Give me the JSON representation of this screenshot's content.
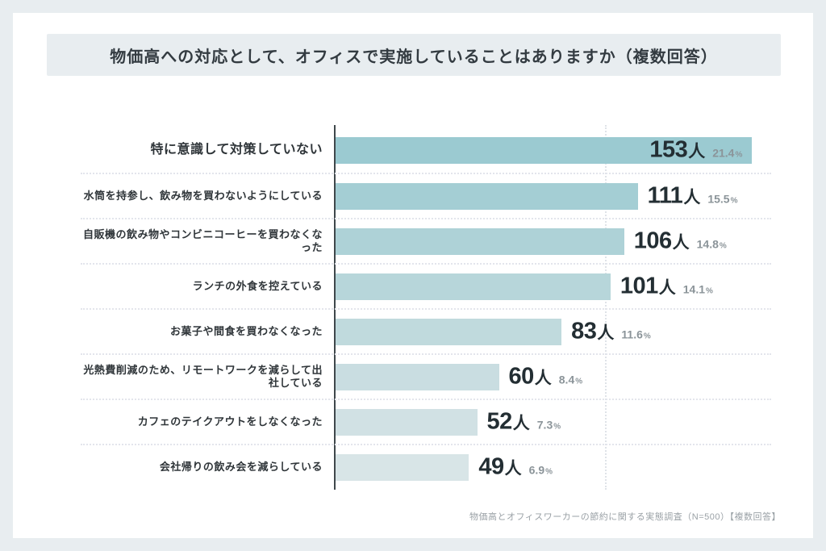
{
  "title": "物価高への対応として、オフィスで実施していることはありますか（複数回答）",
  "source_note": "物価高とオフィスワーカーの節約に関する実態調査（N=500）【複数回答】",
  "colors": {
    "page_background": "#e8edf0",
    "card_background": "#ffffff",
    "title_band_background": "#e8edf0",
    "axis_line": "#3f474b",
    "grid_dots": "#dfe3e8",
    "number_text": "#232e33",
    "percent_text": "#8b9499",
    "label_text": "#2f3539",
    "source_text": "#9aa1a6"
  },
  "chart_data": {
    "type": "bar",
    "orientation": "horizontal",
    "title": "物価高への対応として、オフィスで実施していることはありますか（複数回答）",
    "unit": "人",
    "percent_unit": "%",
    "xlim": [
      0,
      160
    ],
    "gridline_value": 100,
    "grid": "one vertical dotted gridline at 100人; dotted horizontal separators between rows",
    "legend": "none",
    "categories": [
      "特に意識して対策していない",
      "水筒を持参し、飲み物を買わないようにしている",
      "自販機の飲み物やコンビニコーヒーを買わなくなった",
      "ランチの外食を控えている",
      "お菓子や間食を買わなくなった",
      "光熱費削減のため、リモートワークを減らして出社している",
      "カフェのテイクアウトをしなくなった",
      "会社帰りの飲み会を減らしている"
    ],
    "values": [
      153,
      111,
      106,
      101,
      83,
      60,
      52,
      49
    ],
    "percents": [
      "21.4",
      "15.5",
      "14.8",
      "14.1",
      "11.6",
      "8.4",
      "7.3",
      "6.9"
    ],
    "bar_colors": [
      "#9bcad1",
      "#a4ced4",
      "#aed2d7",
      "#b7d6da",
      "#c0dadd",
      "#c9dde1",
      "#d1e1e4",
      "#d8e5e7"
    ]
  }
}
